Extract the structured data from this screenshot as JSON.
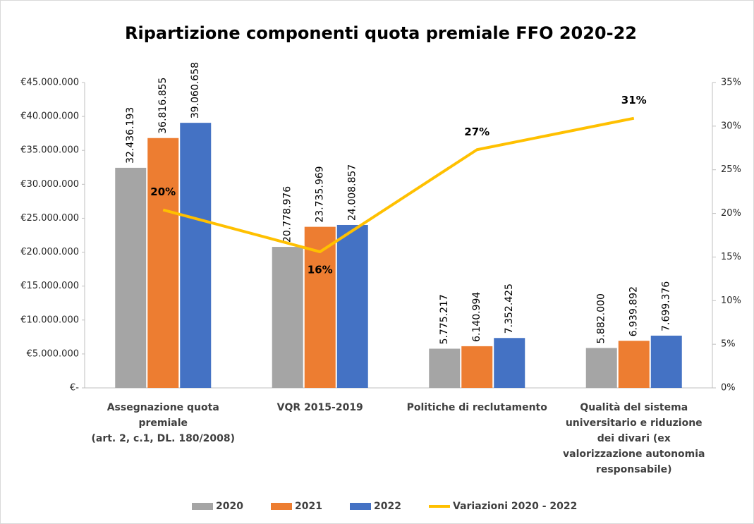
{
  "chart_data": {
    "type": "bar",
    "title": "Ripartizione componenti quota premiale FFO 2020-22",
    "categories": [
      "Assegnazione quota\npremiale\n(art. 2, c.1, DL. 180/2008)",
      "VQR 2015-2019",
      "Politiche di reclutamento",
      "Qualità del sistema\nuniversitario e riduzione\ndei divari (ex\nvalorizzazione autonomia\nresponsabile)"
    ],
    "series": [
      {
        "name": "2020",
        "type": "bar",
        "color": "#a5a5a5",
        "values": [
          32436193,
          20778976,
          5775217,
          5882000
        ],
        "value_labels": [
          "32.436.193",
          "20.778.976",
          "5.775.217",
          "5.882.000"
        ]
      },
      {
        "name": "2021",
        "type": "bar",
        "color": "#ed7d31",
        "values": [
          36816855,
          23735969,
          6140994,
          6939892
        ],
        "value_labels": [
          "36.816.855",
          "23.735.969",
          "6.140.994",
          "6.939.892"
        ]
      },
      {
        "name": "2022",
        "type": "bar",
        "color": "#4472c4",
        "values": [
          39060658,
          24008857,
          7352425,
          7699376
        ],
        "value_labels": [
          "39.060.658",
          "24.008.857",
          "7.352.425",
          "7.699.376"
        ]
      },
      {
        "name": "Variazioni 2020 - 2022",
        "type": "line",
        "axis": "y2",
        "color": "#ffc000",
        "values": [
          20.4,
          15.6,
          27.3,
          30.9
        ],
        "value_labels": [
          "20%",
          "16%",
          "27%",
          "31%"
        ]
      }
    ],
    "ylim": [
      0,
      45000000
    ],
    "yticks": [
      {
        "value": 0,
        "label": "€-"
      },
      {
        "value": 5000000,
        "label": "€5.000.000"
      },
      {
        "value": 10000000,
        "label": "€10.000.000"
      },
      {
        "value": 15000000,
        "label": "€15.000.000"
      },
      {
        "value": 20000000,
        "label": "€20.000.000"
      },
      {
        "value": 25000000,
        "label": "€25.000.000"
      },
      {
        "value": 30000000,
        "label": "€30.000.000"
      },
      {
        "value": 35000000,
        "label": "€35.000.000"
      },
      {
        "value": 40000000,
        "label": "€40.000.000"
      },
      {
        "value": 45000000,
        "label": "€45.000.000"
      }
    ],
    "y2lim": [
      0,
      35
    ],
    "y2ticks": [
      {
        "value": 0,
        "label": "0%"
      },
      {
        "value": 5,
        "label": "5%"
      },
      {
        "value": 10,
        "label": "10%"
      },
      {
        "value": 15,
        "label": "15%"
      },
      {
        "value": 20,
        "label": "20%"
      },
      {
        "value": 25,
        "label": "25%"
      },
      {
        "value": 30,
        "label": "30%"
      },
      {
        "value": 35,
        "label": "35%"
      }
    ],
    "legend": "bottom"
  }
}
